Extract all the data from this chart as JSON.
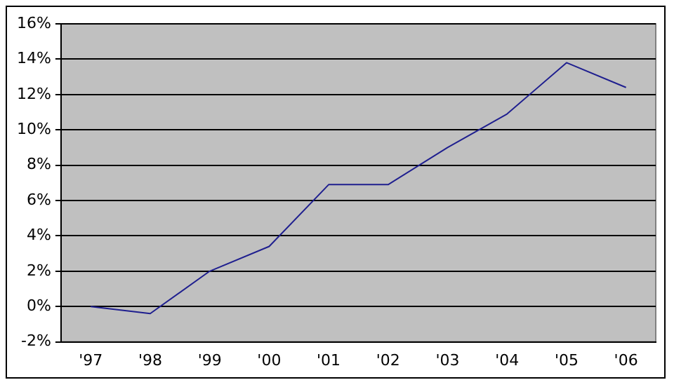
{
  "chart_data": {
    "type": "line",
    "categories": [
      "'97",
      "'98",
      "'99",
      "'00",
      "'01",
      "'02",
      "'03",
      "'04",
      "'05",
      "'06"
    ],
    "series": [
      {
        "color": "#1f1f8f",
        "values": [
          0,
          -0.4,
          2.0,
          3.4,
          6.9,
          6.9,
          9.0,
          10.9,
          13.8,
          12.4
        ]
      }
    ],
    "ylim": [
      -2,
      16
    ],
    "yticks": [
      {
        "value": -2,
        "label": "-2%"
      },
      {
        "value": 0,
        "label": "0%"
      },
      {
        "value": 2,
        "label": "2%"
      },
      {
        "value": 4,
        "label": "4%"
      },
      {
        "value": 6,
        "label": "6%"
      },
      {
        "value": 8,
        "label": "8%"
      },
      {
        "value": 10,
        "label": "10%"
      },
      {
        "value": 12,
        "label": "12%"
      },
      {
        "value": 14,
        "label": "14%"
      },
      {
        "value": 16,
        "label": "16%"
      }
    ],
    "grid": "y",
    "legend": false,
    "marker": "none",
    "line_style": "solid"
  }
}
